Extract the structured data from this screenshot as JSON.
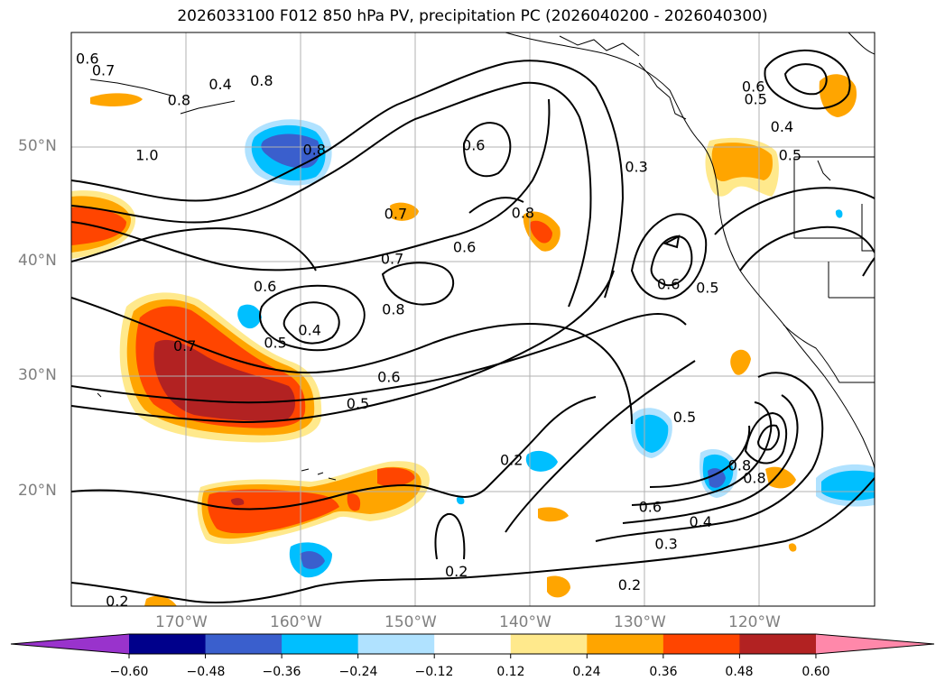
{
  "title": "2026033100 F012 850 hPa PV, precipitation PC (2026040200 - 2026040300)",
  "lon_labels": [
    "170°W",
    "160°W",
    "150°W",
    "140°W",
    "130°W",
    "120°W"
  ],
  "lat_labels": [
    "50°N",
    "40°N",
    "30°N",
    "20°N"
  ],
  "colorbar": {
    "ticks": [
      "−0.60",
      "−0.48",
      "−0.36",
      "−0.24",
      "−0.12",
      "0.12",
      "0.24",
      "0.36",
      "0.48",
      "0.60"
    ],
    "colors": [
      "#9933cc",
      "#00008b",
      "#3a5fcd",
      "#00bfff",
      "#b0e2ff",
      "#ffffff",
      "#ffe98c",
      "#ffa500",
      "#ff4500",
      "#b22222",
      "#ff88aa"
    ]
  },
  "contour_labels": [
    {
      "text": "0.6",
      "lon": -178.6,
      "lat": 57.4
    },
    {
      "text": "0.7",
      "lon": -177.2,
      "lat": 56.4
    },
    {
      "text": "0.8",
      "lon": -163.4,
      "lat": 55.5
    },
    {
      "text": "0.4",
      "lon": -167.0,
      "lat": 55.2
    },
    {
      "text": "0.8",
      "lon": -170.6,
      "lat": 53.8
    },
    {
      "text": "0.8",
      "lon": -158.8,
      "lat": 49.5
    },
    {
      "text": "1.0",
      "lon": -173.4,
      "lat": 49.0
    },
    {
      "text": "0.6",
      "lon": -144.9,
      "lat": 49.9
    },
    {
      "text": "0.3",
      "lon": -130.7,
      "lat": 48.0
    },
    {
      "text": "0.5",
      "lon": -117.3,
      "lat": 49.0
    },
    {
      "text": "0.4",
      "lon": -118.0,
      "lat": 51.5
    },
    {
      "text": "0.6",
      "lon": -120.5,
      "lat": 55.0
    },
    {
      "text": "0.5",
      "lon": -120.3,
      "lat": 53.9
    },
    {
      "text": "0.7",
      "lon": -151.7,
      "lat": 43.9
    },
    {
      "text": "0.8",
      "lon": -140.6,
      "lat": 44.0
    },
    {
      "text": "0.6",
      "lon": -145.7,
      "lat": 41.0
    },
    {
      "text": "0.7",
      "lon": -152.0,
      "lat": 40.0
    },
    {
      "text": "0.6",
      "lon": -163.1,
      "lat": 37.6
    },
    {
      "text": "0.8",
      "lon": -151.9,
      "lat": 35.6
    },
    {
      "text": "0.4",
      "lon": -159.2,
      "lat": 33.8
    },
    {
      "text": "0.5",
      "lon": -162.2,
      "lat": 32.7
    },
    {
      "text": "0.7",
      "lon": -170.1,
      "lat": 32.4
    },
    {
      "text": "0.6",
      "lon": -152.3,
      "lat": 29.7
    },
    {
      "text": "0.5",
      "lon": -155.0,
      "lat": 27.4
    },
    {
      "text": "0.6",
      "lon": -127.9,
      "lat": 37.8
    },
    {
      "text": "0.5",
      "lon": -124.5,
      "lat": 37.5
    },
    {
      "text": "0.5",
      "lon": -126.5,
      "lat": 26.2
    },
    {
      "text": "0.2",
      "lon": -141.6,
      "lat": 22.5
    },
    {
      "text": "0.8",
      "lon": -121.7,
      "lat": 22.0
    },
    {
      "text": "0.8",
      "lon": -120.4,
      "lat": 20.9
    },
    {
      "text": "0.6",
      "lon": -129.5,
      "lat": 18.4
    },
    {
      "text": "0.4",
      "lon": -125.1,
      "lat": 17.1
    },
    {
      "text": "0.3",
      "lon": -128.1,
      "lat": 15.2
    },
    {
      "text": "0.2",
      "lon": -146.4,
      "lat": 12.8
    },
    {
      "text": "0.2",
      "lon": -131.3,
      "lat": 11.6
    },
    {
      "text": "0.2",
      "lon": -176.0,
      "lat": 10.2
    }
  ]
}
